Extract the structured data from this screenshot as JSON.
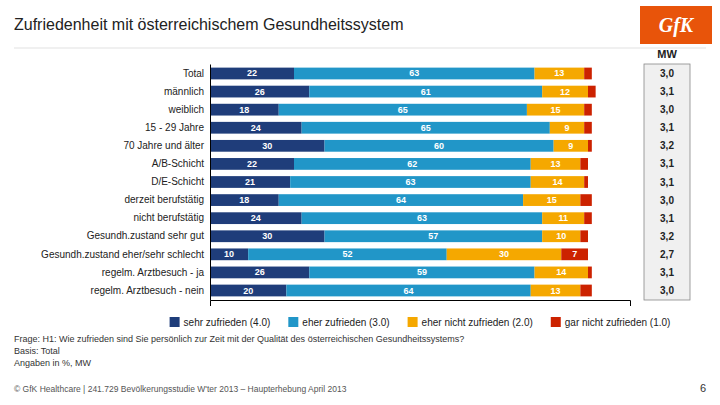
{
  "chart_data": {
    "type": "bar",
    "orientation": "horizontal",
    "stacked": true,
    "data_labels": true,
    "tick_labels": "y",
    "title": "Zufriedenheit mit österreichischem Gesundheitssystem",
    "categories": [
      "Total",
      "männlich",
      "weiblich",
      "15 - 29 Jahre",
      "70 Jahre und älter",
      "A/B-Schicht",
      "D/E-Schicht",
      "derzeit berufstätig",
      "nicht berufstätig",
      "Gesundh.zustand sehr gut",
      "Gesundh.zustand eher/sehr schlecht",
      "regelm. Arztbesuch - ja",
      "regelm. Arztbesuch - nein"
    ],
    "series": [
      {
        "name": "sehr zufrieden (4.0)",
        "color": "#1f3d7a",
        "values": [
          22,
          26,
          18,
          24,
          30,
          22,
          21,
          18,
          24,
          30,
          10,
          26,
          20
        ],
        "value_labels": [
          "22",
          "26",
          "18",
          "24",
          "30",
          "22",
          "21",
          "18",
          "24",
          "30",
          "10",
          "26",
          "20"
        ]
      },
      {
        "name": "eher zufrieden (3.0)",
        "color": "#2196c8",
        "values": [
          63,
          61,
          65,
          65,
          60,
          62,
          63,
          64,
          63,
          57,
          52,
          59,
          64
        ],
        "value_labels": [
          "63",
          "61",
          "65",
          "65",
          "60",
          "62",
          "63",
          "64",
          "63",
          "57",
          "52",
          "59",
          "64"
        ]
      },
      {
        "name": "eher nicht zufrieden (2.0)",
        "color": "#f5a800",
        "values": [
          13,
          12,
          15,
          9,
          9,
          13,
          14,
          15,
          11,
          10,
          30,
          14,
          13
        ],
        "value_labels": [
          "13",
          "12",
          "15",
          "9",
          "9",
          "13",
          "14",
          "15",
          "11",
          "10",
          "30",
          "14",
          "13"
        ]
      },
      {
        "name": "gar nicht zufrieden (1.0)",
        "color": "#cc2200",
        "values": [
          2,
          2,
          2,
          2,
          1,
          2,
          1,
          3,
          2,
          2,
          7,
          1,
          3
        ],
        "value_labels": [
          null,
          null,
          null,
          null,
          null,
          null,
          null,
          null,
          null,
          null,
          "7",
          null,
          null
        ]
      }
    ],
    "xlim": [
      0,
      110
    ],
    "mw_title": "MW",
    "mw": [
      "3,0",
      "3,1",
      "3,0",
      "3,1",
      "3,2",
      "3,1",
      "3,1",
      "3,0",
      "3,1",
      "3,2",
      "2,7",
      "3,1",
      "3,0"
    ],
    "footnotes": [
      "Frage: H1: Wie zufrieden sind Sie persönlich zur Zeit mit der Qualität des österreichischen Gesundheitssystems?",
      "Basis: Total",
      "Angaben in %, MW",
      "© GfK Healthcare | 241.729 Bevölkerungsstudie W'ter 2013 – Haupterhebung   April 2013"
    ],
    "page_number": "6",
    "logo": "GfK"
  }
}
